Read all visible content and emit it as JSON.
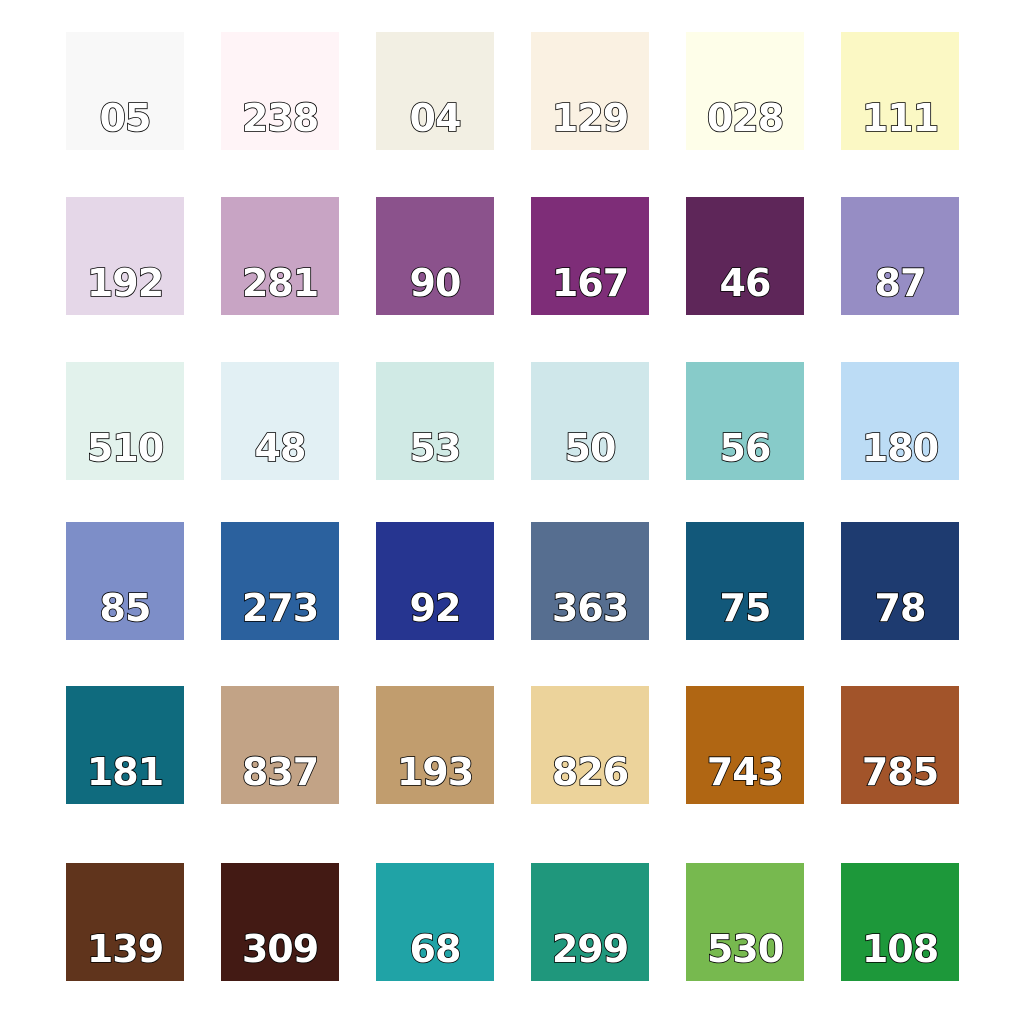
{
  "swatches": [
    {
      "code": "05",
      "color": "#f8f8f8"
    },
    {
      "code": "238",
      "color": "#fff4f7"
    },
    {
      "code": "04",
      "color": "#f2efe3"
    },
    {
      "code": "129",
      "color": "#faf1e2"
    },
    {
      "code": "028",
      "color": "#fefee9"
    },
    {
      "code": "111",
      "color": "#fbf8c4"
    },
    {
      "code": "192",
      "color": "#e5d7e8"
    },
    {
      "code": "281",
      "color": "#c8a4c4"
    },
    {
      "code": "90",
      "color": "#8b528c"
    },
    {
      "code": "167",
      "color": "#7e2d78"
    },
    {
      "code": "46",
      "color": "#5e2659"
    },
    {
      "code": "87",
      "color": "#968dc4"
    },
    {
      "code": "510",
      "color": "#e2f2ec"
    },
    {
      "code": "48",
      "color": "#e2f0f4"
    },
    {
      "code": "53",
      "color": "#d0eae5"
    },
    {
      "code": "50",
      "color": "#cfe7ea"
    },
    {
      "code": "56",
      "color": "#87cbc9"
    },
    {
      "code": "180",
      "color": "#bcdcf5"
    },
    {
      "code": "85",
      "color": "#7d8ec8"
    },
    {
      "code": "273",
      "color": "#2b619e"
    },
    {
      "code": "92",
      "color": "#263590"
    },
    {
      "code": "363",
      "color": "#566e90"
    },
    {
      "code": "75",
      "color": "#12587a"
    },
    {
      "code": "78",
      "color": "#1e3b70"
    },
    {
      "code": "181",
      "color": "#0f6b7e"
    },
    {
      "code": "837",
      "color": "#c2a386"
    },
    {
      "code": "193",
      "color": "#c19d6e"
    },
    {
      "code": "826",
      "color": "#ecd39b"
    },
    {
      "code": "743",
      "color": "#b06613"
    },
    {
      "code": "785",
      "color": "#a2542a"
    },
    {
      "code": "139",
      "color": "#60341c"
    },
    {
      "code": "309",
      "color": "#431a14"
    },
    {
      "code": "68",
      "color": "#20a3a6"
    },
    {
      "code": "299",
      "color": "#1f977c"
    },
    {
      "code": "530",
      "color": "#77b94f"
    },
    {
      "code": "108",
      "color": "#1d983a"
    }
  ]
}
